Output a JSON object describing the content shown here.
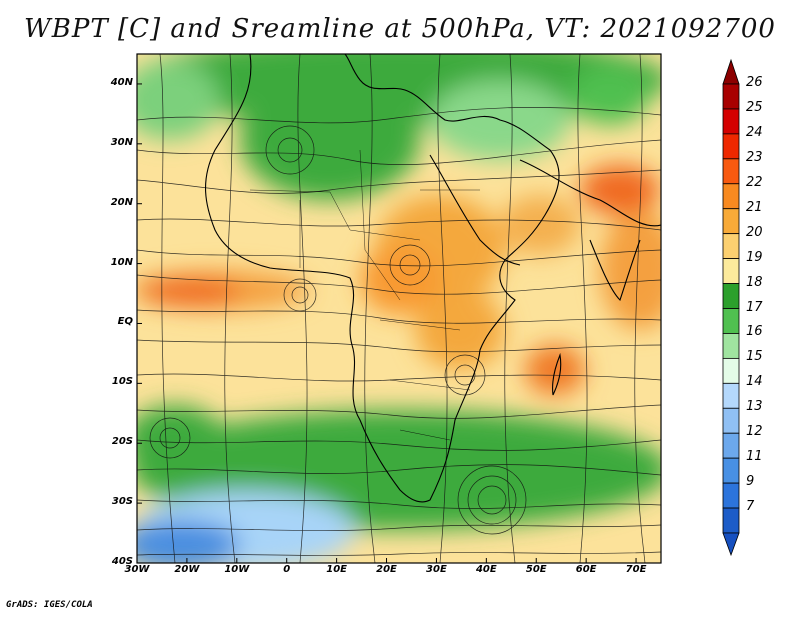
{
  "title": "WBPT [C] and Sreamline at 500hPa, VT: 2021092700",
  "credit": "GrADS: IGES/COLA",
  "map": {
    "lat_labels": [
      "40N",
      "30N",
      "20N",
      "10N",
      "EQ",
      "10S",
      "20S",
      "30S",
      "40S"
    ],
    "lon_labels": [
      "30W",
      "20W",
      "10W",
      "0",
      "10E",
      "20E",
      "30E",
      "40E",
      "50E",
      "60E",
      "70E"
    ],
    "lat_range": [
      -40,
      45
    ],
    "lon_range": [
      -30,
      75
    ]
  },
  "colorbar": {
    "labels": [
      "26",
      "25",
      "24",
      "23",
      "22",
      "21",
      "20",
      "19",
      "18",
      "17",
      "16",
      "15",
      "14",
      "13",
      "12",
      "11",
      "9",
      "7"
    ],
    "colors": [
      "#a80000",
      "#d40000",
      "#ee2800",
      "#f85a10",
      "#f88a20",
      "#f8aa38",
      "#fcd070",
      "#fcea9c",
      "#2ca02c",
      "#50c050",
      "#a0e4a0",
      "#e4fce8",
      "#b4d8fc",
      "#90c0f4",
      "#6ca8ec",
      "#4890e4",
      "#2c74dc",
      "#1c5cc8"
    ]
  }
}
